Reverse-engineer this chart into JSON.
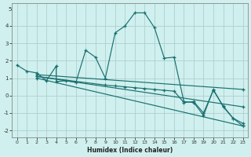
{
  "xlabel": "Humidex (Indice chaleur)",
  "bg_color": "#cff0ee",
  "grid_color": "#b0cece",
  "line_color": "#1a7070",
  "xlim": [
    -0.5,
    23.5
  ],
  "ylim": [
    -2.4,
    5.3
  ],
  "xticks": [
    0,
    1,
    2,
    3,
    4,
    5,
    6,
    7,
    8,
    9,
    10,
    11,
    12,
    13,
    14,
    15,
    16,
    17,
    18,
    19,
    20,
    21,
    22,
    23
  ],
  "yticks": [
    -2,
    -1,
    0,
    1,
    2,
    3,
    4
  ],
  "series": [
    {
      "x": [
        0,
        1,
        2,
        3,
        4,
        4,
        5,
        6,
        7,
        8,
        9,
        10,
        11,
        12,
        13,
        14,
        15,
        16,
        17,
        18,
        19,
        20,
        21,
        22,
        23
      ],
      "y": [
        1.75,
        1.4,
        1.3,
        0.85,
        1.7,
        0.8,
        0.85,
        0.75,
        2.6,
        2.2,
        1.0,
        3.6,
        4.0,
        4.75,
        4.75,
        3.9,
        2.15,
        2.2,
        -0.35,
        -0.4,
        -1.15,
        0.35,
        -0.65,
        -1.3,
        -1.75
      ]
    },
    {
      "x": [
        2,
        23
      ],
      "y": [
        1.2,
        0.35
      ]
    },
    {
      "x": [
        2,
        23
      ],
      "y": [
        1.1,
        -0.65
      ]
    },
    {
      "x": [
        2,
        23
      ],
      "y": [
        1.0,
        -1.75
      ]
    },
    {
      "x": [
        2,
        9,
        10,
        11,
        12,
        13,
        14,
        15,
        16,
        17,
        18,
        19,
        20,
        21,
        22,
        23
      ],
      "y": [
        1.1,
        0.6,
        0.55,
        0.5,
        0.45,
        0.4,
        0.35,
        0.3,
        0.25,
        -0.4,
        -0.35,
        -1.0,
        0.3,
        -0.6,
        -1.3,
        -1.6
      ]
    }
  ]
}
